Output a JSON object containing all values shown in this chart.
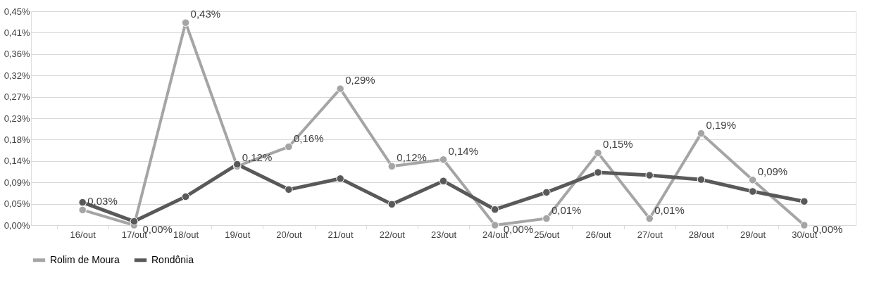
{
  "chart_data": {
    "type": "line",
    "categories": [
      "16/out",
      "17/out",
      "18/out",
      "19/out",
      "20/out",
      "21/out",
      "22/out",
      "23/out",
      "24/out",
      "25/out",
      "26/out",
      "27/out",
      "28/out",
      "29/out",
      "30/out"
    ],
    "series": [
      {
        "name": "Rolim de Moura",
        "color": "#a5a5a5",
        "values": [
          0.032,
          0.0,
          0.426,
          0.124,
          0.165,
          0.287,
          0.124,
          0.138,
          0.0,
          0.014,
          0.152,
          0.014,
          0.193,
          0.095,
          0.0
        ],
        "value_labels": [
          "0,03%",
          "0,00%",
          "0,43%",
          "0,12%",
          "0,16%",
          "0,29%",
          "0,12%",
          "0,14%",
          "0,00%",
          "0,01%",
          "0,15%",
          "0,01%",
          "0,19%",
          "0,09%",
          "0,00%"
        ]
      },
      {
        "name": "Rondônia",
        "color": "#595959",
        "values": [
          0.048,
          0.008,
          0.06,
          0.128,
          0.075,
          0.098,
          0.044,
          0.093,
          0.033,
          0.069,
          0.111,
          0.105,
          0.096,
          0.071,
          0.05
        ]
      }
    ],
    "ylim": [
      0,
      0.45
    ],
    "yticks": [
      {
        "value": 0,
        "label": "0,00%"
      },
      {
        "value": 0.045,
        "label": "0,05%"
      },
      {
        "value": 0.09,
        "label": "0,09%"
      },
      {
        "value": 0.135,
        "label": "0,14%"
      },
      {
        "value": 0.18,
        "label": "0,18%"
      },
      {
        "value": 0.225,
        "label": "0,23%"
      },
      {
        "value": 0.27,
        "label": "0,27%"
      },
      {
        "value": 0.315,
        "label": "0,32%"
      },
      {
        "value": 0.36,
        "label": "0,36%"
      },
      {
        "value": 0.405,
        "label": "0,41%"
      },
      {
        "value": 0.45,
        "label": "0,45%"
      }
    ],
    "grid": "y",
    "legend": "bottom",
    "marker": "circle",
    "line_style": "solid"
  }
}
